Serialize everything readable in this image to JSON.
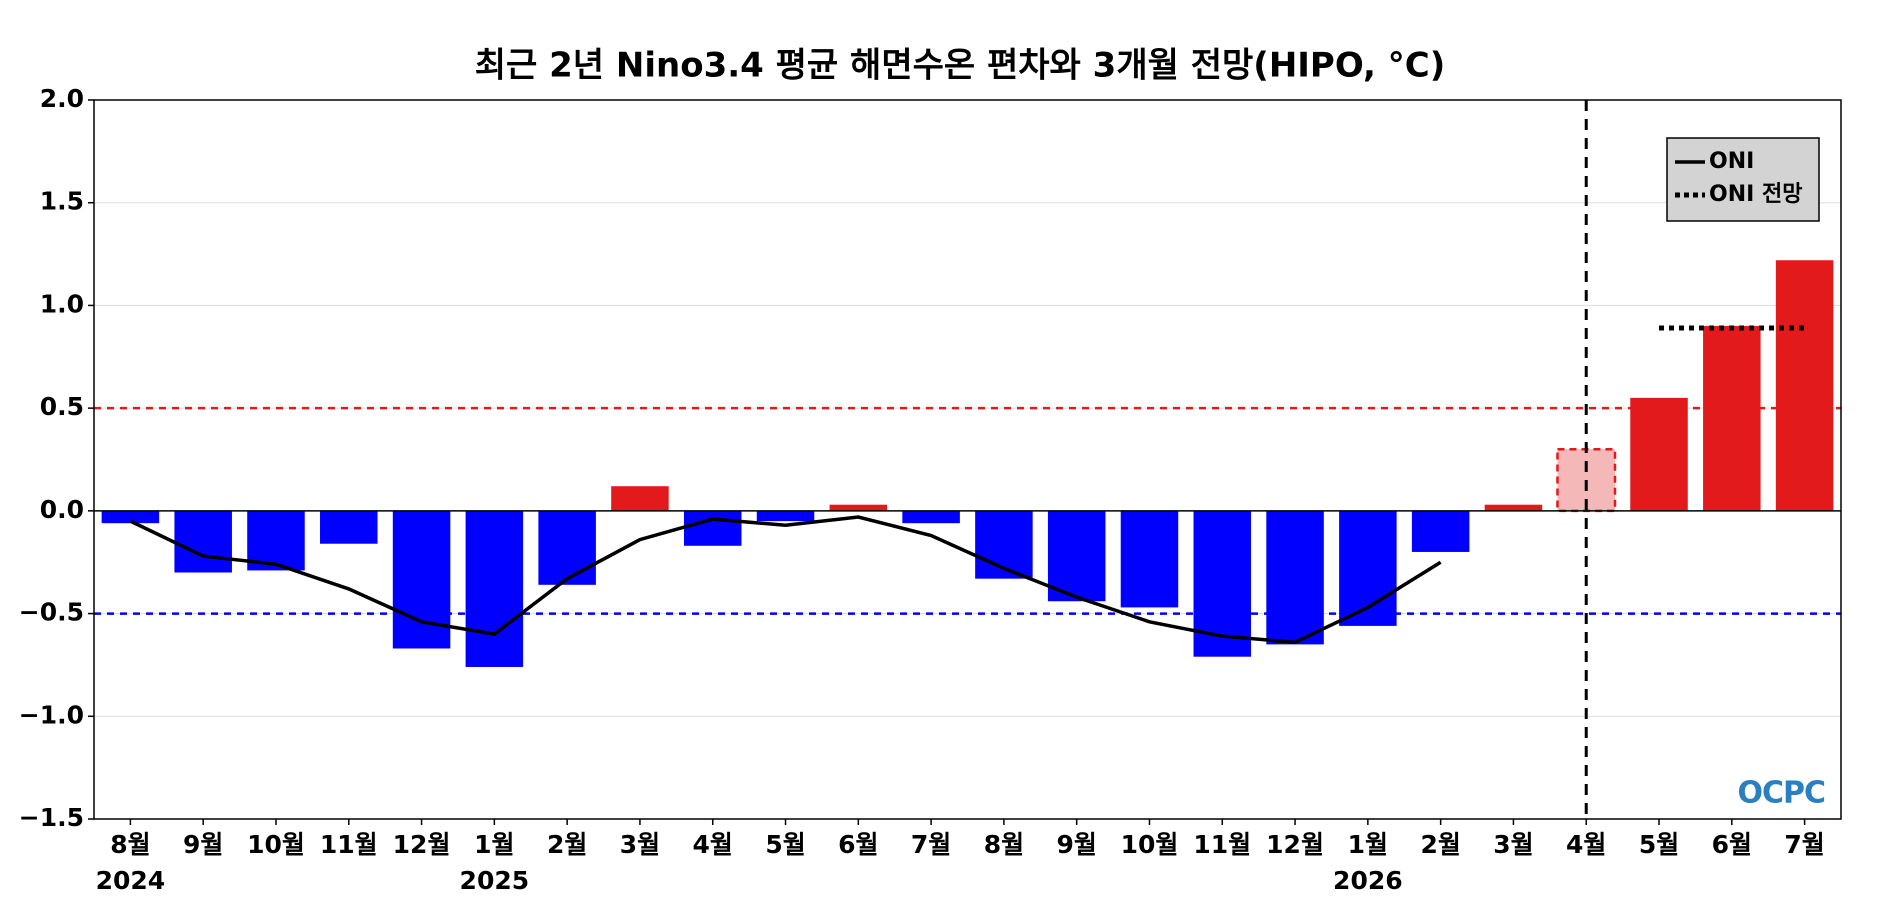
{
  "chart_data": {
    "type": "bar",
    "title": "최근 2년 Nino3.4 평균 해면수온 편차와 3개월 전망(HIPO, °C)",
    "categories": [
      "8월",
      "9월",
      "10월",
      "11월",
      "12월",
      "1월",
      "2월",
      "3월",
      "4월",
      "5월",
      "6월",
      "7월",
      "8월",
      "9월",
      "10월",
      "11월",
      "12월",
      "1월",
      "2월",
      "3월",
      "4월",
      "5월",
      "6월",
      "7월"
    ],
    "year_labels": [
      "2024",
      null,
      null,
      null,
      null,
      "2025",
      null,
      null,
      null,
      null,
      null,
      null,
      null,
      null,
      null,
      null,
      null,
      "2026",
      null,
      null,
      null,
      null,
      null,
      null
    ],
    "values": [
      -0.06,
      -0.3,
      -0.29,
      -0.16,
      -0.67,
      -0.76,
      -0.36,
      0.12,
      -0.17,
      -0.05,
      0.03,
      -0.06,
      -0.33,
      -0.44,
      -0.47,
      -0.71,
      -0.65,
      -0.56,
      -0.2,
      0.03,
      0.3,
      0.55,
      0.9,
      1.22
    ],
    "colors": [
      "#0000ff",
      "#0000ff",
      "#0000ff",
      "#0000ff",
      "#0000ff",
      "#0000ff",
      "#0000ff",
      "#e31a1c",
      "#0000ff",
      "#0000ff",
      "#e31a1c",
      "#0000ff",
      "#0000ff",
      "#0000ff",
      "#0000ff",
      "#0000ff",
      "#0000ff",
      "#0000ff",
      "#0000ff",
      "#e31a1c",
      "#f4b8b8",
      "#e31a1c",
      "#e31a1c",
      "#e31a1c"
    ],
    "edge_colors": [
      null,
      null,
      null,
      null,
      null,
      null,
      null,
      null,
      null,
      null,
      null,
      null,
      null,
      null,
      null,
      null,
      null,
      null,
      null,
      null,
      "#e31a1c",
      null,
      null,
      null
    ],
    "series": [
      {
        "name": "ONI",
        "color": "#000000",
        "style": "solid",
        "values": [
          -0.05,
          -0.22,
          -0.26,
          -0.38,
          -0.54,
          -0.6,
          -0.33,
          -0.14,
          -0.04,
          -0.07,
          -0.03,
          -0.12,
          -0.28,
          -0.42,
          -0.54,
          -0.61,
          -0.64,
          -0.47,
          -0.25,
          null,
          null,
          null,
          null,
          null
        ]
      },
      {
        "name": "ONI 전망",
        "color": "#000000",
        "style": "dotted",
        "values": [
          null,
          null,
          null,
          null,
          null,
          null,
          null,
          null,
          null,
          null,
          null,
          null,
          null,
          null,
          null,
          null,
          null,
          null,
          null,
          null,
          null,
          0.89,
          0.89,
          0.89
        ]
      }
    ],
    "hlines": [
      {
        "value": 0.5,
        "color": "#e31a1c"
      },
      {
        "value": -0.5,
        "color": "#0000ff"
      }
    ],
    "vline_index": 20,
    "ylim": [
      -1.5,
      2.0
    ],
    "yticks": [
      {
        "value": -1.5,
        "label": "−1.5"
      },
      {
        "value": -1.0,
        "label": "−1.0"
      },
      {
        "value": -0.5,
        "label": "−0.5"
      },
      {
        "value": 0.0,
        "label": "0.0"
      },
      {
        "value": 0.5,
        "label": "0.5"
      },
      {
        "value": 1.0,
        "label": "1.0"
      },
      {
        "value": 1.5,
        "label": "1.5"
      },
      {
        "value": 2.0,
        "label": "2.0"
      }
    ],
    "grid": true,
    "legend": "upper right",
    "logo": "OCPC"
  }
}
